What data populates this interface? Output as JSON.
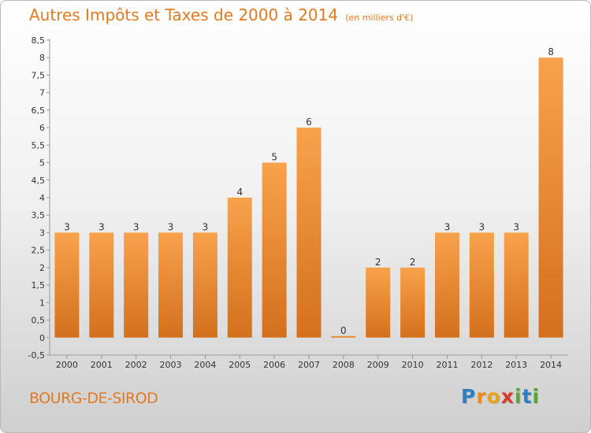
{
  "title": "Autres Impôts et Taxes de 2000 à 2014",
  "subtitle": "(en milliers d'€)",
  "commune": "BOURG-DE-SIROD",
  "logo": {
    "letters": [
      "P",
      "r",
      "o",
      "x",
      "i",
      "t",
      "i"
    ],
    "colors": [
      "#2b7fc4",
      "#f08a1c",
      "#e8a21a",
      "#d93a2b",
      "#5aa532",
      "#2b7fc4",
      "#5aa532"
    ]
  },
  "colors": {
    "bar_light": "#f8a24c",
    "bar_dark": "#d4701c",
    "text_accent": "#e07b22"
  },
  "chart_data": {
    "type": "bar",
    "title": "Autres Impôts et Taxes de 2000 à 2014",
    "subtitle": "(en milliers d'€)",
    "categories": [
      "2000",
      "2001",
      "2002",
      "2003",
      "2004",
      "2005",
      "2006",
      "2007",
      "2008",
      "2009",
      "2010",
      "2011",
      "2012",
      "2013",
      "2014"
    ],
    "values": [
      3,
      3,
      3,
      3,
      3,
      4,
      5,
      6,
      0,
      2,
      2,
      3,
      3,
      3,
      8
    ],
    "data_labels": [
      "3",
      "3",
      "3",
      "3",
      "3",
      "4",
      "5",
      "6",
      "0",
      "2",
      "2",
      "3",
      "3",
      "3",
      "8"
    ],
    "ylim": [
      -0.5,
      8.5
    ],
    "yticks": [
      "-0,5",
      "0",
      "0,5",
      "1",
      "1,5",
      "2",
      "2,5",
      "3",
      "3,5",
      "4",
      "4,5",
      "5",
      "5,5",
      "6",
      "6,5",
      "7",
      "7,5",
      "8",
      "8,5"
    ],
    "ytick_values": [
      -0.5,
      0,
      0.5,
      1,
      1.5,
      2,
      2.5,
      3,
      3.5,
      4,
      4.5,
      5,
      5.5,
      6,
      6.5,
      7,
      7.5,
      8,
      8.5
    ],
    "grid": false,
    "legend": "none"
  }
}
